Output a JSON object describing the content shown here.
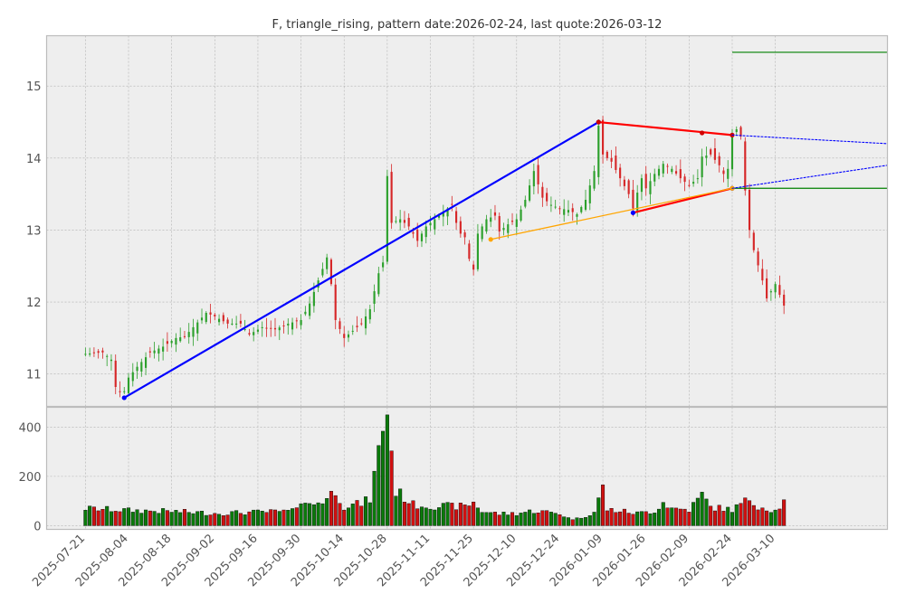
{
  "chart_data": {
    "type": "candlestick",
    "title": "F, triangle_rising, pattern date:2026-02-24, last quote:2026-03-12",
    "grid": true,
    "price_panel": {
      "ylim": [
        10.55,
        15.7
      ],
      "yticks": [
        11,
        12,
        13,
        14,
        15
      ],
      "ytick_labels": [
        "11",
        "12",
        "13",
        "14",
        "15"
      ]
    },
    "volume_panel": {
      "ylim": [
        -15,
        480
      ],
      "yticks": [
        0,
        200,
        400
      ],
      "ytick_labels": [
        "0",
        "200",
        "400"
      ]
    },
    "xlim": [
      -9,
      186
    ],
    "xticks": [
      {
        "label": "2025-07-21",
        "x": 0
      },
      {
        "label": "2025-08-04",
        "x": 10
      },
      {
        "label": "2025-08-18",
        "x": 20
      },
      {
        "label": "2025-09-02",
        "x": 30
      },
      {
        "label": "2025-09-16",
        "x": 40
      },
      {
        "label": "2025-09-30",
        "x": 50
      },
      {
        "label": "2025-10-14",
        "x": 60
      },
      {
        "label": "2025-10-28",
        "x": 70
      },
      {
        "label": "2025-11-11",
        "x": 80
      },
      {
        "label": "2025-11-25",
        "x": 90
      },
      {
        "label": "2025-12-10",
        "x": 100
      },
      {
        "label": "2025-12-24",
        "x": 110
      },
      {
        "label": "2026-01-09",
        "x": 120
      },
      {
        "label": "2026-01-26",
        "x": 130
      },
      {
        "label": "2026-02-09",
        "x": 140
      },
      {
        "label": "2026-02-24",
        "x": 150
      },
      {
        "label": "2026-03-10",
        "x": 160
      }
    ],
    "colors": {
      "up": "#2ca02c",
      "down": "#d62728",
      "volume_up": "#0a7a0a",
      "volume_down": "#d01010",
      "main_line": "#0000ff",
      "upper_line": "#ff0000",
      "lower_line": "#ff0000",
      "support_line": "#ffa500",
      "level": "#008000"
    },
    "close_anchors": [
      [
        0,
        11.28
      ],
      [
        4,
        11.3
      ],
      [
        6,
        11.2
      ],
      [
        7,
        10.82
      ],
      [
        8,
        10.75
      ],
      [
        9,
        10.76
      ],
      [
        10,
        10.95
      ],
      [
        12,
        11.1
      ],
      [
        15,
        11.3
      ],
      [
        18,
        11.38
      ],
      [
        21,
        11.5
      ],
      [
        23,
        11.52
      ],
      [
        25,
        11.65
      ],
      [
        28,
        11.85
      ],
      [
        30,
        11.8
      ],
      [
        33,
        11.7
      ],
      [
        36,
        11.7
      ],
      [
        38,
        11.55
      ],
      [
        41,
        11.65
      ],
      [
        44,
        11.62
      ],
      [
        47,
        11.7
      ],
      [
        50,
        11.75
      ],
      [
        52,
        11.98
      ],
      [
        54,
        12.3
      ],
      [
        56,
        12.62
      ],
      [
        57,
        12.25
      ],
      [
        58,
        11.75
      ],
      [
        60,
        11.5
      ],
      [
        62,
        11.6
      ],
      [
        64,
        11.7
      ],
      [
        66,
        11.9
      ],
      [
        68,
        12.4
      ],
      [
        69,
        12.55
      ],
      [
        70,
        13.75
      ],
      [
        71,
        13.1
      ],
      [
        73,
        13.15
      ],
      [
        75,
        13.05
      ],
      [
        77,
        12.85
      ],
      [
        79,
        13.05
      ],
      [
        81,
        13.15
      ],
      [
        83,
        13.25
      ],
      [
        85,
        13.35
      ],
      [
        86,
        13.1
      ],
      [
        87,
        12.95
      ],
      [
        88,
        12.9
      ],
      [
        89,
        12.6
      ],
      [
        90,
        12.45
      ],
      [
        91,
        12.95
      ],
      [
        93,
        13.15
      ],
      [
        95,
        13.2
      ],
      [
        96,
        12.98
      ],
      [
        98,
        13.08
      ],
      [
        100,
        13.15
      ],
      [
        102,
        13.42
      ],
      [
        104,
        13.82
      ],
      [
        106,
        13.45
      ],
      [
        108,
        13.35
      ],
      [
        110,
        13.3
      ],
      [
        112,
        13.28
      ],
      [
        114,
        13.22
      ],
      [
        116,
        13.42
      ],
      [
        118,
        13.82
      ],
      [
        119,
        14.45
      ],
      [
        120,
        14.05
      ],
      [
        122,
        13.95
      ],
      [
        124,
        13.72
      ],
      [
        126,
        13.5
      ],
      [
        127,
        13.3
      ],
      [
        128,
        13.52
      ],
      [
        129,
        13.72
      ],
      [
        130,
        13.58
      ],
      [
        132,
        13.78
      ],
      [
        134,
        13.92
      ],
      [
        136,
        13.85
      ],
      [
        138,
        13.72
      ],
      [
        140,
        13.62
      ],
      [
        142,
        13.72
      ],
      [
        143,
        14.02
      ],
      [
        145,
        14.05
      ],
      [
        147,
        13.9
      ],
      [
        148,
        13.78
      ],
      [
        149,
        13.85
      ],
      [
        150,
        14.32
      ],
      [
        151,
        14.4
      ],
      [
        152,
        14.3
      ],
      [
        153,
        13.55
      ],
      [
        154,
        13.0
      ],
      [
        155,
        12.72
      ],
      [
        157,
        12.3
      ],
      [
        158,
        12.05
      ],
      [
        160,
        12.25
      ],
      [
        161,
        12.1
      ],
      [
        162,
        11.95
      ]
    ],
    "volume_anchors": [
      [
        0,
        70
      ],
      [
        10,
        62
      ],
      [
        20,
        58
      ],
      [
        30,
        50
      ],
      [
        40,
        55
      ],
      [
        48,
        58
      ],
      [
        50,
        110
      ],
      [
        52,
        82
      ],
      [
        56,
        110
      ],
      [
        58,
        145
      ],
      [
        60,
        78
      ],
      [
        64,
        90
      ],
      [
        66,
        108
      ],
      [
        68,
        300
      ],
      [
        69,
        410
      ],
      [
        70,
        470
      ],
      [
        71,
        300
      ],
      [
        72,
        140
      ],
      [
        74,
        115
      ],
      [
        76,
        85
      ],
      [
        80,
        80
      ],
      [
        88,
        78
      ],
      [
        90,
        95
      ],
      [
        92,
        58
      ],
      [
        96,
        48
      ],
      [
        100,
        50
      ],
      [
        104,
        60
      ],
      [
        110,
        50
      ],
      [
        112,
        30
      ],
      [
        114,
        28
      ],
      [
        118,
        55
      ],
      [
        120,
        155
      ],
      [
        121,
        65
      ],
      [
        124,
        60
      ],
      [
        128,
        50
      ],
      [
        132,
        60
      ],
      [
        134,
        95
      ],
      [
        136,
        70
      ],
      [
        140,
        65
      ],
      [
        143,
        125
      ],
      [
        145,
        75
      ],
      [
        150,
        65
      ],
      [
        154,
        108
      ],
      [
        156,
        80
      ],
      [
        160,
        60
      ],
      [
        162,
        95
      ]
    ],
    "n_bars": 163,
    "pattern_lines": [
      {
        "role": "main",
        "from": [
          9,
          10.67
        ],
        "to": [
          119,
          14.5
        ],
        "markers": true,
        "dashed": false
      },
      {
        "role": "upper",
        "from": [
          119,
          14.5
        ],
        "to": [
          150,
          14.32
        ],
        "markers": true,
        "mid_marker": [
          143,
          14.35
        ],
        "dashed": false
      },
      {
        "role": "lower",
        "from": [
          127,
          13.24
        ],
        "to": [
          150,
          13.58
        ],
        "markers": true,
        "dashed": false
      },
      {
        "role": "support",
        "from": [
          94,
          12.87
        ],
        "to": [
          150,
          13.58
        ],
        "markers": true,
        "dashed": false
      },
      {
        "role": "upper_projection",
        "from": [
          150,
          14.32
        ],
        "to": [
          186,
          14.2
        ],
        "markers": false,
        "dashed": true
      },
      {
        "role": "lower_projection",
        "from": [
          150,
          13.58
        ],
        "to": [
          186,
          13.9
        ],
        "markers": false,
        "dashed": true
      }
    ],
    "levels": [
      {
        "y": 15.47,
        "from": 150,
        "to": 186
      },
      {
        "y": 13.58,
        "from": 150,
        "to": 186
      }
    ]
  }
}
